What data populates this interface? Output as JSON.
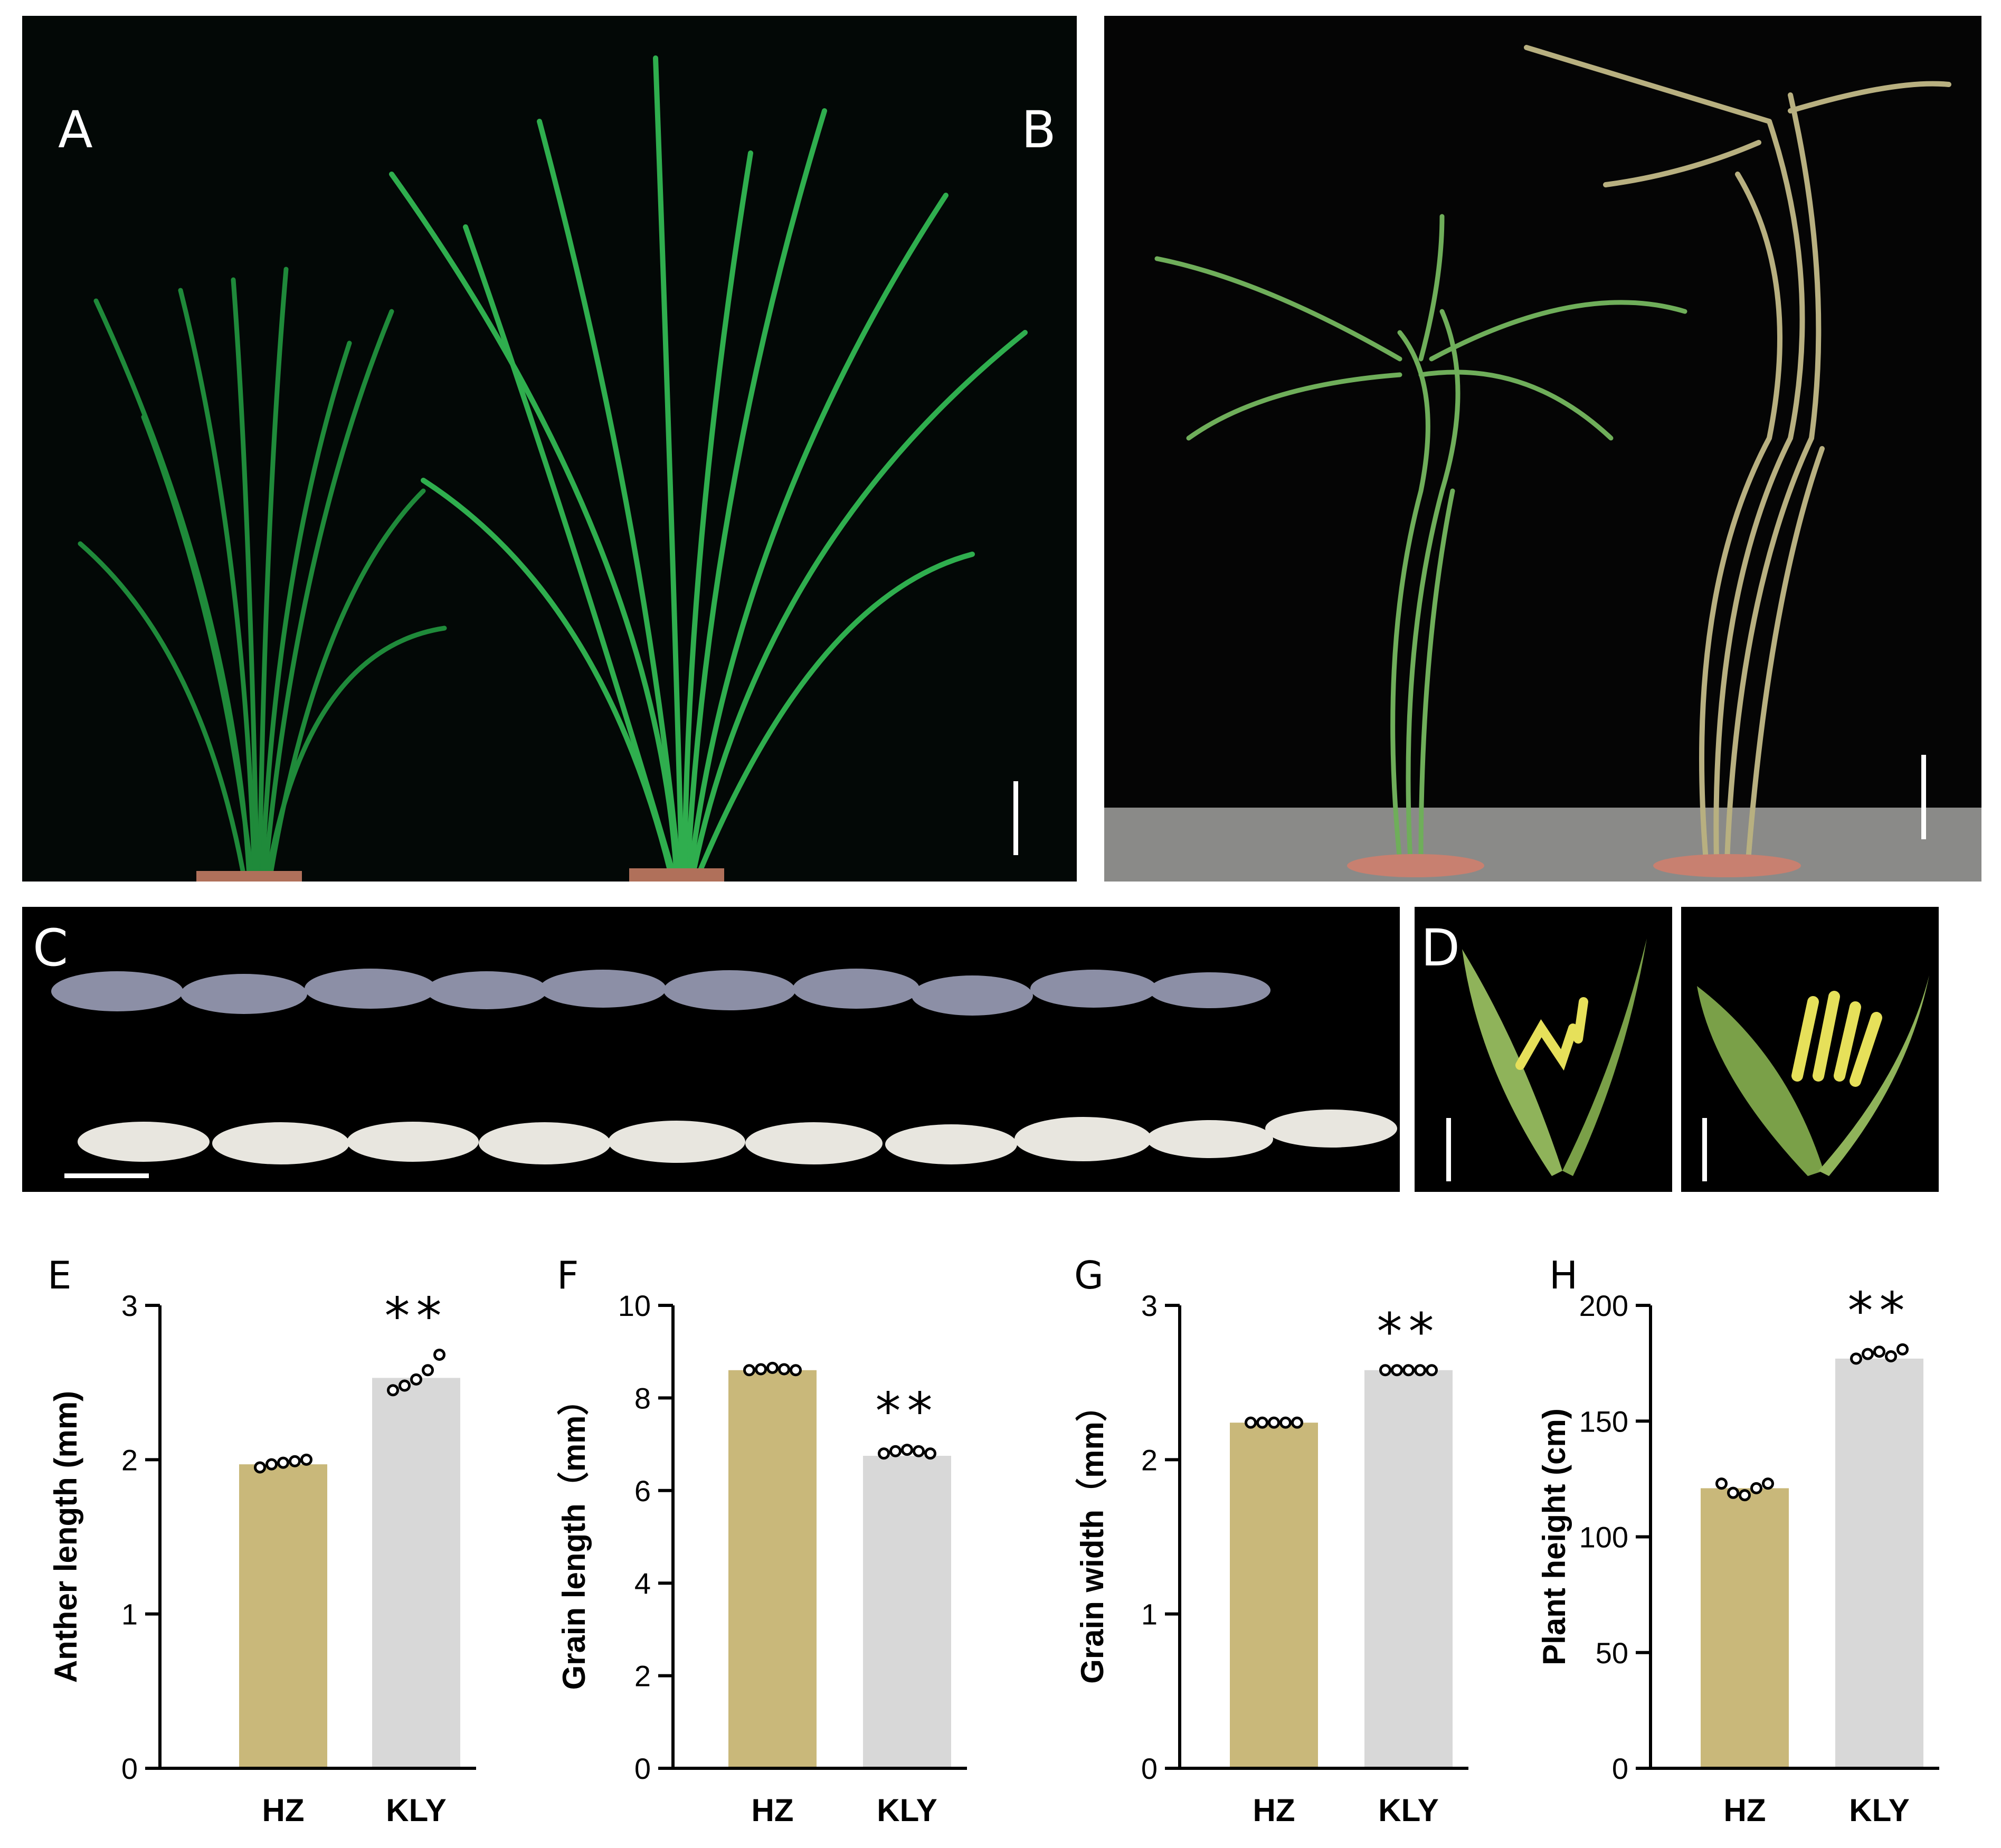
{
  "panels": {
    "A": {
      "label": "A"
    },
    "B": {
      "label": "B"
    },
    "C": {
      "label": "C"
    },
    "D": {
      "label": "D"
    }
  },
  "colors": {
    "HZ": "#c9b87a",
    "KLY": "#d8d8d8",
    "leaf_dark": "#1f8a3a",
    "leaf_light": "#2fae4e",
    "straw": "#b9a77a",
    "grain_dark": "#8c8fa6",
    "grain_light": "#e8e6df",
    "anther": "#e6e05a",
    "hull": "#8fb35a"
  },
  "chart_data": [
    {
      "panel": "E",
      "type": "bar",
      "categories": [
        "HZ",
        "KLY"
      ],
      "values": [
        1.97,
        2.53
      ],
      "points": [
        [
          1.95,
          1.97,
          1.98,
          1.99,
          2.0
        ],
        [
          2.45,
          2.48,
          2.52,
          2.58,
          2.68
        ]
      ],
      "ylabel": "Anther  length (mm)",
      "ylim": [
        0,
        3
      ],
      "yticks": [
        "0",
        "1",
        "2",
        "3"
      ],
      "significance": [
        "",
        "**"
      ]
    },
    {
      "panel": "F",
      "type": "bar",
      "categories": [
        "HZ",
        "KLY"
      ],
      "values": [
        8.6,
        6.75
      ],
      "points": [
        [
          8.6,
          8.62,
          8.65,
          8.62,
          8.6
        ],
        [
          6.8,
          6.85,
          6.88,
          6.85,
          6.8
        ]
      ],
      "ylabel": "Grain length（mm）",
      "ylim": [
        0,
        10
      ],
      "yticks": [
        "0",
        "2",
        "4",
        "6",
        "8",
        "10"
      ],
      "significance": [
        "",
        "**"
      ]
    },
    {
      "panel": "G",
      "type": "bar",
      "categories": [
        "HZ",
        "KLY"
      ],
      "values": [
        2.24,
        2.58
      ],
      "points": [
        [
          2.24,
          2.24,
          2.24,
          2.24,
          2.24
        ],
        [
          2.58,
          2.58,
          2.58,
          2.58,
          2.58
        ]
      ],
      "ylabel": "Grain width（mm）",
      "ylim": [
        0,
        3
      ],
      "yticks": [
        "0",
        "1",
        "2",
        "3"
      ],
      "significance": [
        "",
        "**"
      ]
    },
    {
      "panel": "H",
      "type": "bar",
      "categories": [
        "HZ",
        "KLY"
      ],
      "values": [
        121,
        177
      ],
      "points": [
        [
          123,
          119,
          118,
          121,
          123
        ],
        [
          177,
          179,
          180,
          178,
          181
        ]
      ],
      "ylabel": "Plant height (cm)",
      "ylim": [
        0,
        200
      ],
      "yticks": [
        "0",
        "50",
        "100",
        "150",
        "200"
      ],
      "significance": [
        "",
        "**"
      ]
    }
  ]
}
